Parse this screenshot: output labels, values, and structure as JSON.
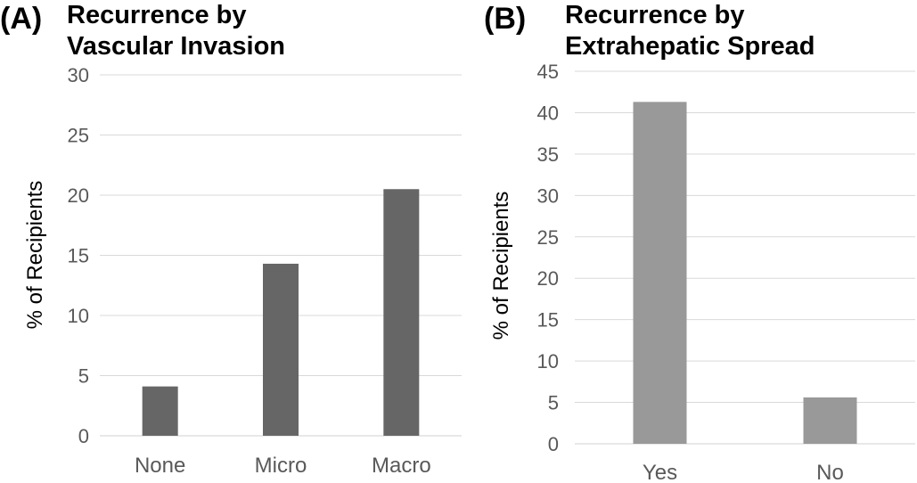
{
  "chart_data": [
    {
      "type": "bar",
      "panel": "(A)",
      "title_lines": [
        "Recurrence by",
        "Vascular Invasion"
      ],
      "ylabel": "% of Recipients",
      "xlabel": "",
      "categories": [
        "None",
        "Micro",
        "Macro"
      ],
      "values": [
        4.1,
        14.3,
        20.5
      ],
      "ylim": [
        0,
        30
      ],
      "yticks": [
        0,
        5,
        10,
        15,
        20,
        25,
        30
      ],
      "grid": true,
      "color": "#666666"
    },
    {
      "type": "bar",
      "panel": "(B)",
      "title_lines": [
        "Recurrence by",
        "Extrahepatic Spread"
      ],
      "ylabel": "% of Recipients",
      "xlabel": "",
      "categories": [
        "Yes",
        "No"
      ],
      "values": [
        41.3,
        5.6
      ],
      "ylim": [
        0,
        45
      ],
      "yticks": [
        0,
        5,
        10,
        15,
        20,
        25,
        30,
        35,
        40,
        45
      ],
      "grid": true,
      "color": "#999999"
    }
  ]
}
